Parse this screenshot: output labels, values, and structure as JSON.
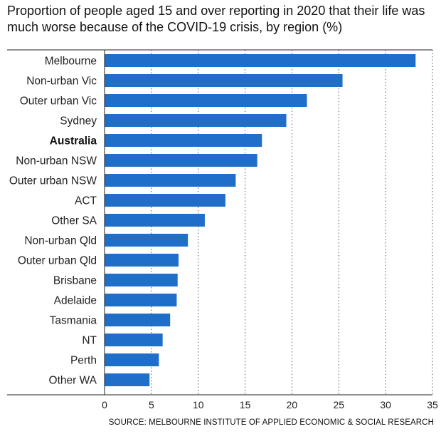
{
  "chart_data": {
    "type": "bar",
    "orientation": "horizontal",
    "title": "Proportion of people aged 15 and over reporting in 2020 that their life was much worse because of the COVID-19 crisis, by region (%)",
    "source": "SOURCE: MELBOURNE INSTITUTE OF APPLIED ECONOMIC & SOCIAL RESEARCH",
    "categories": [
      "Melbourne",
      "Non-urban Vic",
      "Outer urban Vic",
      "Sydney",
      "Australia",
      "Non-urban NSW",
      "Outer urban NSW",
      "ACT",
      "Other SA",
      "Non-urban Qld",
      "Outer urban Qld",
      "Brisbane",
      "Adelaide",
      "Tasmania",
      "NT",
      "Perth",
      "Other WA"
    ],
    "values": [
      33.2,
      25.4,
      21.6,
      19.4,
      16.8,
      16.3,
      14.0,
      12.9,
      10.7,
      8.9,
      7.9,
      7.8,
      7.7,
      7.0,
      6.2,
      5.8,
      4.8
    ],
    "highlight": [
      "Australia"
    ],
    "xlim": [
      0,
      35
    ],
    "xticks": [
      0,
      5,
      10,
      15,
      20,
      25,
      30,
      35
    ],
    "grid": "vertical dotted",
    "bar_color": "#1f6fc9"
  }
}
